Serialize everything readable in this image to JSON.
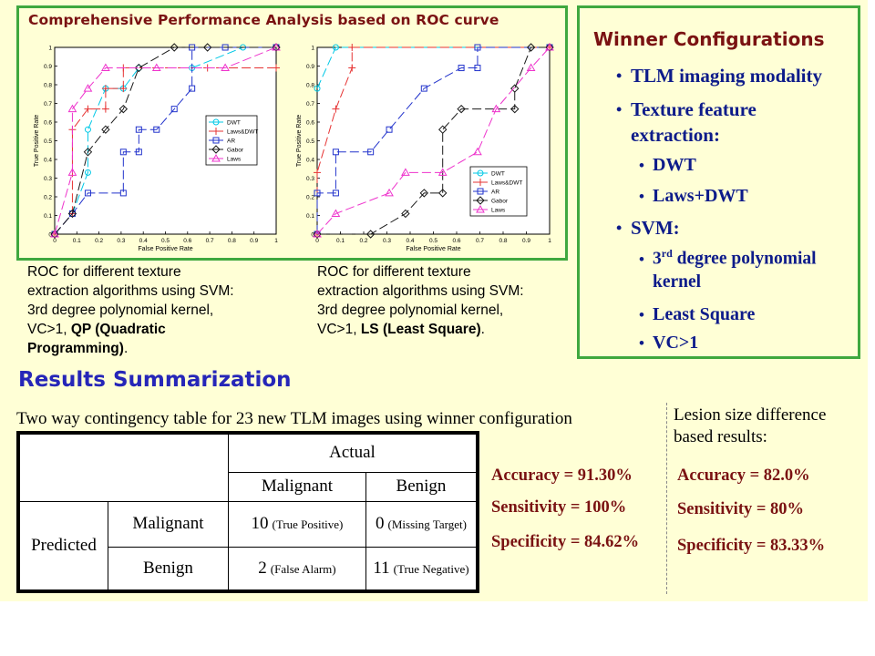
{
  "roc_panel": {
    "title": "Comprehensive Performance Analysis based on ROC curve"
  },
  "chart_data": [
    {
      "type": "line",
      "xlabel": "False Positive Rate",
      "ylabel": "True Positive Rate",
      "xlim": [
        0,
        1
      ],
      "ylim": [
        0,
        1
      ],
      "xticks": [
        "0",
        "0.1",
        "0.2",
        "0.3",
        "0.4",
        "0.5",
        "0.6",
        "0.7",
        "0.8",
        "0.9",
        "1"
      ],
      "yticks": [
        "0",
        "0.1",
        "0.2",
        "0.3",
        "0.4",
        "0.5",
        "0.6",
        "0.7",
        "0.8",
        "0.9",
        "1"
      ],
      "legend_position": "center-right",
      "series": [
        {
          "name": "DWT",
          "color": "#00c8e6",
          "marker": "circle",
          "points": [
            [
              0,
              0
            ],
            [
              0.08,
              0.11
            ],
            [
              0.15,
              0.33
            ],
            [
              0.15,
              0.56
            ],
            [
              0.23,
              0.78
            ],
            [
              0.31,
              0.78
            ],
            [
              0.38,
              0.89
            ],
            [
              0.62,
              0.89
            ],
            [
              0.85,
              1
            ],
            [
              1,
              1
            ]
          ]
        },
        {
          "name": "Laws&DWT",
          "color": "#e63333",
          "marker": "plus",
          "points": [
            [
              0,
              0
            ],
            [
              0.08,
              0.11
            ],
            [
              0.08,
              0.56
            ],
            [
              0.15,
              0.67
            ],
            [
              0.23,
              0.67
            ],
            [
              0.23,
              0.78
            ],
            [
              0.31,
              0.78
            ],
            [
              0.31,
              0.89
            ],
            [
              0.69,
              0.89
            ],
            [
              1,
              0.89
            ]
          ]
        },
        {
          "name": "AR",
          "color": "#2233cc",
          "marker": "square",
          "points": [
            [
              0,
              0
            ],
            [
              0.08,
              0.11
            ],
            [
              0.15,
              0.22
            ],
            [
              0.31,
              0.22
            ],
            [
              0.31,
              0.44
            ],
            [
              0.38,
              0.44
            ],
            [
              0.38,
              0.56
            ],
            [
              0.46,
              0.56
            ],
            [
              0.54,
              0.67
            ],
            [
              0.62,
              0.78
            ],
            [
              0.62,
              1
            ],
            [
              0.77,
              1
            ],
            [
              1,
              1
            ]
          ]
        },
        {
          "name": "Gabor",
          "color": "#1a1a1a",
          "marker": "diamond",
          "points": [
            [
              0,
              0
            ],
            [
              0.08,
              0.11
            ],
            [
              0.15,
              0.44
            ],
            [
              0.23,
              0.56
            ],
            [
              0.31,
              0.67
            ],
            [
              0.38,
              0.89
            ],
            [
              0.54,
              1
            ],
            [
              0.69,
              1
            ],
            [
              1,
              1
            ]
          ]
        },
        {
          "name": "Laws",
          "color": "#ee33cc",
          "marker": "triangle",
          "points": [
            [
              0,
              0
            ],
            [
              0.08,
              0.33
            ],
            [
              0.08,
              0.67
            ],
            [
              0.15,
              0.78
            ],
            [
              0.23,
              0.89
            ],
            [
              0.46,
              0.89
            ],
            [
              0.77,
              0.89
            ],
            [
              1,
              1
            ]
          ]
        }
      ]
    },
    {
      "type": "line",
      "xlabel": "False Positive Rate",
      "ylabel": "True Positive Rate",
      "xlim": [
        0,
        1
      ],
      "ylim": [
        0,
        1
      ],
      "xticks": [
        "0",
        "0.1",
        "0.2",
        "0.3",
        "0.4",
        "0.5",
        "0.6",
        "0.7",
        "0.8",
        "0.9",
        "1"
      ],
      "yticks": [
        "0",
        "0.1",
        "0.2",
        "0.3",
        "0.4",
        "0.5",
        "0.6",
        "0.7",
        "0.8",
        "0.9",
        "1"
      ],
      "legend_position": "bottom-right",
      "series": [
        {
          "name": "DWT",
          "color": "#00c8e6",
          "marker": "circle",
          "points": [
            [
              0,
              0.78
            ],
            [
              0.08,
              1
            ],
            [
              1,
              1
            ]
          ]
        },
        {
          "name": "Laws&DWT",
          "color": "#e63333",
          "marker": "plus",
          "points": [
            [
              0,
              0
            ],
            [
              0,
              0.33
            ],
            [
              0.08,
              0.67
            ],
            [
              0.15,
              0.89
            ],
            [
              0.15,
              1
            ],
            [
              1,
              1
            ]
          ]
        },
        {
          "name": "AR",
          "color": "#2233cc",
          "marker": "square",
          "points": [
            [
              0,
              0
            ],
            [
              0,
              0.22
            ],
            [
              0.08,
              0.22
            ],
            [
              0.08,
              0.44
            ],
            [
              0.23,
              0.44
            ],
            [
              0.31,
              0.56
            ],
            [
              0.46,
              0.78
            ],
            [
              0.62,
              0.89
            ],
            [
              0.69,
              0.89
            ],
            [
              0.69,
              1
            ],
            [
              1,
              1
            ]
          ]
        },
        {
          "name": "Gabor",
          "color": "#1a1a1a",
          "marker": "diamond",
          "points": [
            [
              0,
              0
            ],
            [
              0.23,
              0
            ],
            [
              0.38,
              0.11
            ],
            [
              0.46,
              0.22
            ],
            [
              0.54,
              0.22
            ],
            [
              0.54,
              0.56
            ],
            [
              0.62,
              0.67
            ],
            [
              0.85,
              0.67
            ],
            [
              0.85,
              0.78
            ],
            [
              0.92,
              1
            ],
            [
              1,
              1
            ]
          ]
        },
        {
          "name": "Laws",
          "color": "#ee33cc",
          "marker": "triangle",
          "points": [
            [
              0,
              0
            ],
            [
              0.08,
              0.11
            ],
            [
              0.31,
              0.22
            ],
            [
              0.38,
              0.33
            ],
            [
              0.54,
              0.33
            ],
            [
              0.69,
              0.44
            ],
            [
              0.77,
              0.67
            ],
            [
              0.92,
              0.89
            ],
            [
              1,
              1
            ]
          ]
        }
      ]
    }
  ],
  "captions": {
    "left_lines": [
      "ROC for different texture",
      "extraction algorithms using SVM:",
      "3rd degree polynomial kernel,"
    ],
    "left_last_prefix": "VC>1, ",
    "left_last_bold": "QP (Quadratic",
    "left_bold_line": "Programming)",
    "left_end": ".",
    "right_lines": [
      "ROC for different texture",
      "extraction algorithms using SVM:",
      "3rd degree polynomial kernel,"
    ],
    "right_last_prefix": "VC>1, ",
    "right_last_bold": "LS (Least Square)",
    "right_end": "."
  },
  "winner": {
    "title": "Winner Configurations",
    "items": [
      {
        "level": 1,
        "lines": [
          "TLM imaging modality"
        ]
      },
      {
        "level": 1,
        "lines": [
          "Texture feature",
          "extraction:"
        ]
      },
      {
        "level": 2,
        "lines": [
          "DWT"
        ]
      },
      {
        "level": 2,
        "lines": [
          "Laws+DWT"
        ]
      },
      {
        "level": 1,
        "lines": [
          "SVM:"
        ]
      },
      {
        "level": 2,
        "lines": [
          "3rd degree polynomial",
          "kernel"
        ],
        "sup": "rd"
      },
      {
        "level": 2,
        "lines": [
          "Least Square"
        ]
      },
      {
        "level": 2,
        "lines": [
          "VC>1"
        ]
      }
    ]
  },
  "results": {
    "title": "Results Summarization",
    "table_caption": "Two way contingency table for 23 new TLM images using winner configuration",
    "table": {
      "actual": "Actual",
      "predicted": "Predicted",
      "col_malignant": "Malignant",
      "col_benign": "Benign",
      "row_malignant": "Malignant",
      "row_benign": "Benign",
      "tp_value": "10",
      "tp_label": "(True Positive)",
      "mt_value": "0",
      "mt_label": "(Missing Target)",
      "fa_value": "2",
      "fa_label": "(False Alarm)",
      "tn_value": "11",
      "tn_label": "(True Negative)"
    },
    "metrics": {
      "accuracy": "Accuracy = 91.30%",
      "sensitivity": "Sensitivity = 100%",
      "specificity": "Specificity = 84.62%"
    },
    "lesion_caption": [
      "Lesion size difference",
      "based results:"
    ],
    "lesion_metrics": {
      "accuracy": "Accuracy = 82.0%",
      "sensitivity": "Sensitivity = 80%",
      "specificity": "Specificity = 83.33%"
    }
  }
}
